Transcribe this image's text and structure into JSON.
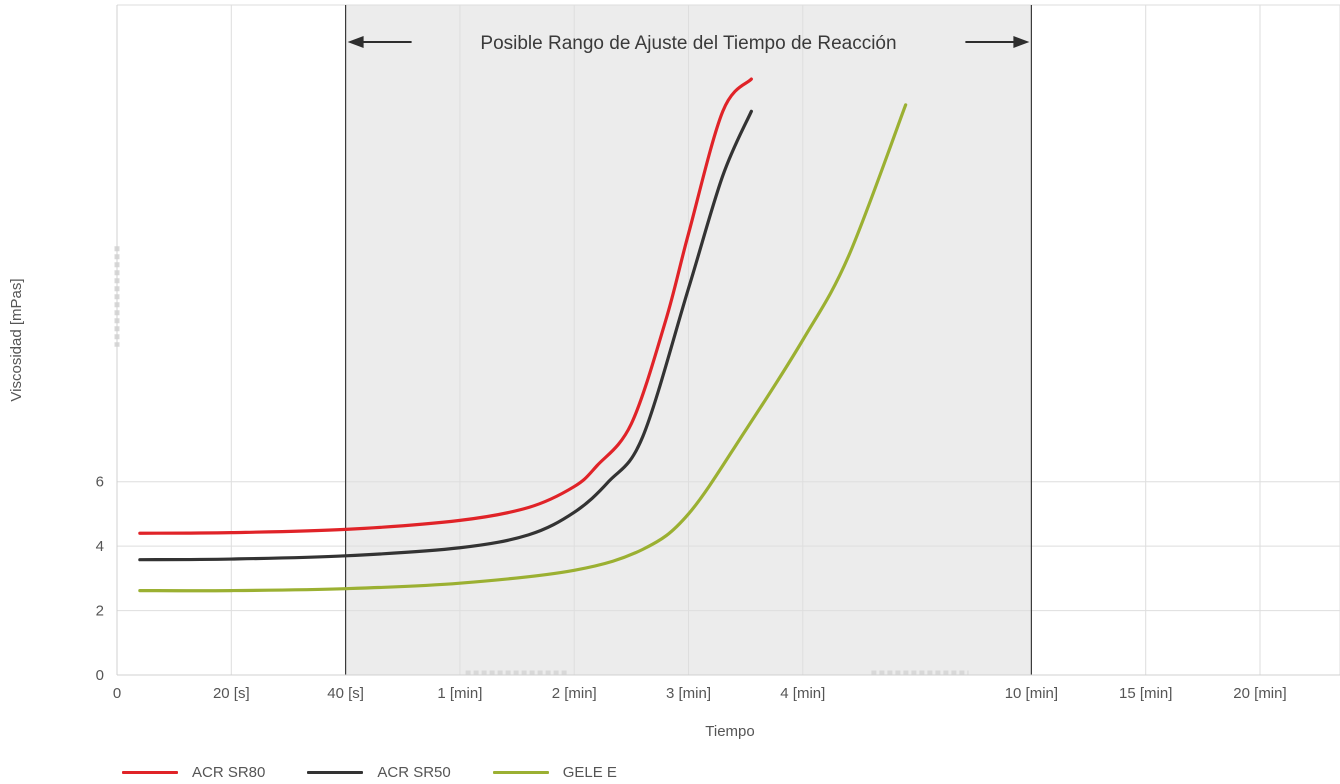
{
  "chart_data": {
    "type": "line",
    "title": "",
    "xlabel": "Tiempo",
    "ylabel": "Viscosidad [mPas]",
    "x_ticks": [
      "0",
      "20 [s]",
      "40 [s]",
      "1 [min]",
      "2 [min]",
      "3 [min]",
      "4 [min]",
      "10 [min]",
      "15 [min]",
      "20 [min]"
    ],
    "x_tick_positions": [
      0,
      1,
      2,
      3,
      4,
      5,
      6,
      8,
      9,
      10
    ],
    "x_gridlines": [
      1,
      2,
      3,
      4,
      5,
      6,
      8,
      9,
      10,
      10.7
    ],
    "x_range": [
      0,
      10.7
    ],
    "y_ticks": [
      0,
      2,
      4,
      6
    ],
    "y_range": [
      0,
      20.8
    ],
    "x_axis_break": "between 4 [min] and 10 [min]",
    "y_axis_break": "above 6",
    "grid": true,
    "shaded_region": {
      "x_start": 2,
      "x_end": 8,
      "label": "Posible Rango de Ajuste del Tiempo de Reacción",
      "color": "#ececec"
    },
    "legend_position": "bottom-left",
    "series": [
      {
        "name": "ACR SR80",
        "color": "#e02328",
        "points": [
          [
            0.2,
            4.4
          ],
          [
            1,
            4.42
          ],
          [
            2,
            4.52
          ],
          [
            3,
            4.8
          ],
          [
            3.6,
            5.2
          ],
          [
            4,
            5.85
          ],
          [
            4.2,
            6.5
          ],
          [
            4.5,
            7.8
          ],
          [
            4.8,
            11
          ],
          [
            5,
            13.7
          ],
          [
            5.3,
            17.5
          ],
          [
            5.55,
            18.5
          ]
        ]
      },
      {
        "name": "ACR SR50",
        "color": "#333333",
        "points": [
          [
            0.2,
            3.58
          ],
          [
            1,
            3.6
          ],
          [
            2,
            3.7
          ],
          [
            3,
            3.95
          ],
          [
            3.6,
            4.35
          ],
          [
            4,
            5.05
          ],
          [
            4.3,
            6.0
          ],
          [
            4.6,
            7.4
          ],
          [
            5,
            12.0
          ],
          [
            5.3,
            15.5
          ],
          [
            5.55,
            17.5
          ]
        ]
      },
      {
        "name": "GELE E",
        "color": "#9bb032",
        "points": [
          [
            0.2,
            2.62
          ],
          [
            1,
            2.62
          ],
          [
            2,
            2.68
          ],
          [
            3,
            2.85
          ],
          [
            4,
            3.25
          ],
          [
            4.6,
            3.9
          ],
          [
            5,
            5.0
          ],
          [
            5.5,
            7.6
          ],
          [
            6,
            10.4
          ],
          [
            6.4,
            13.0
          ],
          [
            6.9,
            17.7
          ]
        ]
      }
    ]
  },
  "legend": [
    {
      "label": "ACR SR80",
      "color": "#e02328"
    },
    {
      "label": "ACR SR50",
      "color": "#333333"
    },
    {
      "label": "GELE E",
      "color": "#9bb032"
    }
  ]
}
